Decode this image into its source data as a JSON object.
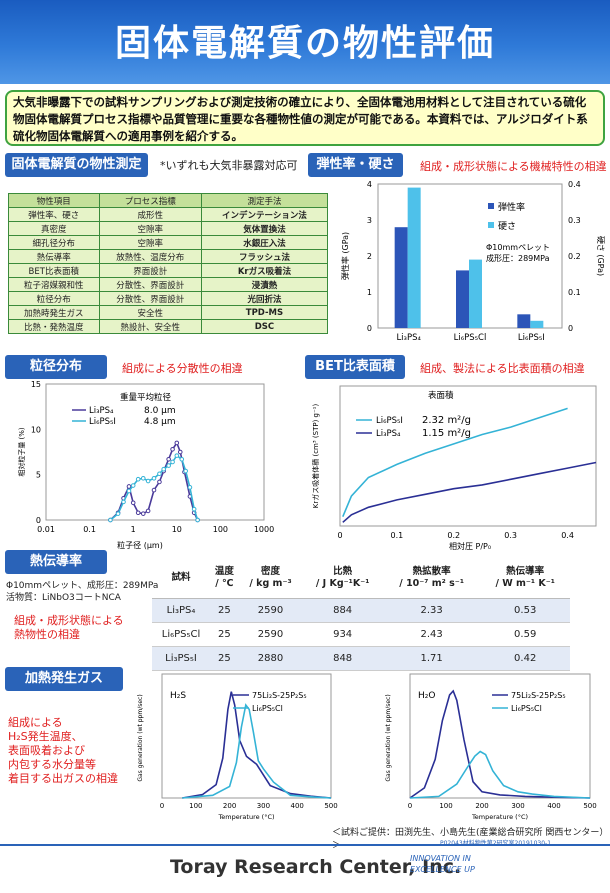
{
  "title": "固体電解質の物性評価",
  "intro": "大気非曝露下での試料サンプリングおよび測定技術の確立により、全固体電池用材料として注目されている硫化物固体電解質プロセス指標や品質管理に重要な各種物性値の測定が可能である。本資料では、アルジロダイト系硫化物固体電解質への適用事例を紹介する。",
  "props": {
    "header": "固体電解質の物性測定",
    "note": "*いずれも大気非暴露対応可",
    "cols": [
      "物性項目",
      "プロセス指標",
      "測定手法"
    ],
    "rows": [
      [
        "弾性率、硬さ",
        "成形性",
        "インデンテーション法"
      ],
      [
        "真密度",
        "空隙率",
        "気体置換法"
      ],
      [
        "細孔径分布",
        "空隙率",
        "水銀圧入法"
      ],
      [
        "熱伝導率",
        "放熱性、温度分布",
        "フラッシュ法"
      ],
      [
        "BET比表面積",
        "界面設計",
        "Krガス吸着法"
      ],
      [
        "粒子溶媒親和性",
        "分散性、界面設計",
        "浸漬熱"
      ],
      [
        "粒径分布",
        "分散性、界面設計",
        "光回折法"
      ],
      [
        "加熱時発生ガス",
        "安全性",
        "TPD-MS"
      ],
      [
        "比熱・発熱温度",
        "熱設計、安全性",
        "DSC"
      ]
    ]
  },
  "elastic": {
    "header": "弾性率・硬さ",
    "desc": "組成・成形状態による機械特性の相違",
    "legend": [
      "弾性率",
      "硬さ"
    ],
    "note1": "Φ10mmペレット",
    "note2": "成形圧：289MPa",
    "ylabel_left": "弾性率 (GPa)",
    "ylabel_right": "硬さ (GPa)",
    "yticks_left": [
      "0",
      "1",
      "2",
      "3",
      "4"
    ],
    "yticks_right": [
      "0",
      "0.1",
      "0.2",
      "0.3",
      "0.4"
    ],
    "xcats": [
      "Li₃PS₄",
      "Li₆PS₅Cl",
      "Li₆PS₅I"
    ],
    "colors": [
      "#2c55b8",
      "#4ec1ea"
    ]
  },
  "particle": {
    "header": "粒径分布",
    "desc": "組成による分散性の相違",
    "legend_title": "重量平均粒径",
    "series": [
      {
        "name": "Li₃PS₄",
        "value": "8.0 µm"
      },
      {
        "name": "Li₆PS₅I",
        "value": "4.8 µm"
      }
    ],
    "ylabel": "相対粒子量 (%)",
    "xlabel": "粒子径 (µm)",
    "yticks": [
      "0",
      "5",
      "10",
      "15"
    ],
    "xticks": [
      "0.01",
      "0.1",
      "1",
      "10",
      "100",
      "1000"
    ]
  },
  "bet": {
    "header": "BET比表面積",
    "desc": "組成、製法による比表面積の相違",
    "legend_title": "表面積",
    "series": [
      {
        "name": "Li₆PS₅I",
        "value": "2.32 m²/g"
      },
      {
        "name": "Li₃PS₄",
        "value": "1.15 m²/g"
      }
    ],
    "ylabel": "Krガス吸着体積 (cm³ (STP) g⁻¹)",
    "xlabel": "相対圧 P/P₀",
    "xticks": [
      "0",
      "0.1",
      "0.2",
      "0.3",
      "0.4"
    ]
  },
  "thermal": {
    "header": "熱伝導率",
    "note1": "Φ10mmペレット、成形圧：289MPa",
    "note2": "活物質：LiNbO3コートNCA",
    "desc1": "組成・成形状態による",
    "desc2": "熱物性の相違",
    "cols": [
      "試料",
      "温度\n/ ℃",
      "密度\n/ kg m⁻³",
      "比熱\n/ J Kg⁻¹K⁻¹",
      "熱拡散率\n/ 10⁻⁷ m² s⁻¹",
      "熱伝導率\n/ W m⁻¹ K⁻¹"
    ],
    "rows": [
      [
        "Li₃PS₄",
        "25",
        "2590",
        "884",
        "2.33",
        "0.53"
      ],
      [
        "Li₆PS₅Cl",
        "25",
        "2590",
        "934",
        "2.43",
        "0.59"
      ],
      [
        "Li₃PS₅I",
        "25",
        "2880",
        "848",
        "1.71",
        "0.42"
      ]
    ]
  },
  "gas": {
    "header": "加熱発生ガス",
    "desc": [
      "組成による",
      "H₂S発生温度、",
      "表面吸着および",
      "内包する水分量等",
      "着目する出ガスの相違"
    ],
    "chart1": {
      "label": "H₂S",
      "series": [
        "75Li₂S-25P₂S₅",
        "Li₆PS₅Cl"
      ]
    },
    "chart2": {
      "label": "H₂O",
      "series": [
        "75Li₂S-25P₂S₅",
        "Li₆PS₅Cl"
      ]
    },
    "ylabel": "Gas generation (wt ppm/sec)",
    "xlabel": "Temperature (°C)",
    "xticks": [
      "0",
      "100",
      "200",
      "300",
      "400",
      "500"
    ]
  },
  "credit": "＜試料ご提供：田渕先生、小島先生(産業総合研究所 関西センター）＞",
  "doc_id": "P02043材料物性第2研究室20191030-1",
  "company": "Toray Research Center, Inc.",
  "slogan1": "INNOVATION IN",
  "slogan2": "EXCELLENCE UP",
  "chart_data": [
    {
      "type": "bar",
      "title": "弾性率・硬さ",
      "categories": [
        "Li₃PS₄",
        "Li₆PS₅Cl",
        "Li₆PS₅I"
      ],
      "series": [
        {
          "name": "弾性率",
          "values": [
            2.8,
            1.6,
            0.38
          ],
          "axis": "left"
        },
        {
          "name": "硬さ",
          "values": [
            0.39,
            0.19,
            0.02
          ],
          "axis": "right"
        }
      ],
      "ylabel": "弾性率 (GPa)",
      "ylim": [
        0,
        4
      ],
      "y2label": "硬さ (GPa)",
      "y2lim": [
        0,
        0.4
      ]
    },
    {
      "type": "line",
      "title": "粒径分布",
      "xscale": "log",
      "xlim": [
        0.01,
        1000
      ],
      "ylim": [
        0,
        15
      ],
      "xlabel": "粒子径 (µm)",
      "ylabel": "相対粒子量 (%)",
      "series": [
        {
          "name": "Li₃PS₄",
          "x": [
            0.3,
            0.45,
            0.6,
            0.8,
            1,
            1.3,
            1.7,
            2.2,
            3,
            4,
            5,
            6.5,
            8,
            10,
            12,
            15,
            20,
            25,
            30
          ],
          "y": [
            0,
            0.8,
            2.4,
            3.7,
            1.9,
            0.8,
            0.7,
            1.0,
            3.3,
            4.2,
            5.4,
            6.7,
            7.8,
            8.5,
            7.5,
            5.3,
            2.6,
            0.8,
            0
          ]
        },
        {
          "name": "Li₆PS₅I",
          "x": [
            0.3,
            0.45,
            0.6,
            0.8,
            1,
            1.3,
            1.7,
            2.2,
            3,
            4,
            5,
            6.5,
            8,
            10,
            13,
            16,
            20,
            25,
            30
          ],
          "y": [
            0,
            0.7,
            2.0,
            3.2,
            3.8,
            4.5,
            4.6,
            4.3,
            4.6,
            5.1,
            5.6,
            6.0,
            6.4,
            7.1,
            6.7,
            5.4,
            3.6,
            1.2,
            0
          ]
        }
      ]
    },
    {
      "type": "line",
      "title": "BET比表面積",
      "xlim": [
        0,
        0.45
      ],
      "xlabel": "相対圧 P/P₀",
      "series": [
        {
          "name": "Li₆PS₅I",
          "x": [
            0.005,
            0.02,
            0.05,
            0.1,
            0.15,
            0.2,
            0.25,
            0.3,
            0.35,
            0.4
          ],
          "y": [
            0.05,
            0.16,
            0.26,
            0.33,
            0.39,
            0.44,
            0.49,
            0.53,
            0.58,
            0.63
          ]
        },
        {
          "name": "Li₃PS₄",
          "x": [
            0.005,
            0.02,
            0.05,
            0.1,
            0.15,
            0.2,
            0.25,
            0.3,
            0.35,
            0.4,
            0.45
          ],
          "y": [
            0.02,
            0.06,
            0.1,
            0.14,
            0.17,
            0.2,
            0.22,
            0.25,
            0.28,
            0.31,
            0.34
          ]
        }
      ]
    },
    {
      "type": "line",
      "title": "H₂S",
      "xlim": [
        0,
        500
      ],
      "xlabel": "Temperature (°C)",
      "ylabel": "Gas generation (wt ppm/sec)",
      "series": [
        {
          "name": "75Li₂S-25P₂S₅",
          "x": [
            60,
            120,
            160,
            180,
            195,
            205,
            215,
            230,
            250,
            280,
            320,
            380,
            440,
            500
          ],
          "y": [
            0,
            0.4,
            1.5,
            4.5,
            10,
            12,
            10.5,
            6.5,
            4.7,
            3.8,
            1.4,
            0.5,
            0.2,
            0
          ]
        },
        {
          "name": "Li₆PS₅Cl",
          "x": [
            60,
            150,
            200,
            220,
            235,
            248,
            258,
            270,
            285,
            300,
            330,
            380,
            450,
            500
          ],
          "y": [
            0,
            0.3,
            1.3,
            4,
            8,
            10.5,
            10,
            7.5,
            4.2,
            3.3,
            1.8,
            0.3,
            0.1,
            0
          ]
        }
      ]
    },
    {
      "type": "line",
      "title": "H₂O",
      "xlim": [
        0,
        500
      ],
      "xlabel": "Temperature (°C)",
      "ylabel": "Gas generation (wt ppm/sec)",
      "series": [
        {
          "name": "75Li₂S-25P₂S₅",
          "x": [
            0,
            40,
            70,
            90,
            110,
            120,
            130,
            150,
            175,
            200,
            250,
            320,
            400,
            500
          ],
          "y": [
            0,
            1.3,
            5,
            10,
            13.3,
            13.8,
            12.6,
            7.5,
            2.1,
            0.8,
            0.4,
            0.2,
            0.1,
            0
          ]
        },
        {
          "name": "Li₆PS₅Cl",
          "x": [
            0,
            80,
            130,
            160,
            180,
            195,
            210,
            230,
            260,
            300,
            340,
            400,
            500
          ],
          "y": [
            0,
            0.2,
            1.8,
            4,
            5.4,
            6.0,
            5.6,
            3.5,
            1.6,
            0.8,
            0.5,
            0.2,
            0
          ]
        }
      ]
    }
  ]
}
